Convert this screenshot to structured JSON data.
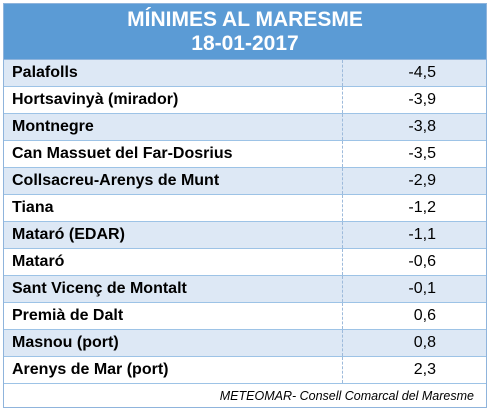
{
  "header": {
    "title": "MÍNIMES AL MARESME",
    "date": "18-01-2017"
  },
  "rows": [
    {
      "name": "Palafolls",
      "value": "-4,5"
    },
    {
      "name": "Hortsavinyà (mirador)",
      "value": "-3,9"
    },
    {
      "name": "Montnegre",
      "value": "-3,8"
    },
    {
      "name": "Can Massuet del Far-Dosrius",
      "value": "-3,5"
    },
    {
      "name": "Collsacreu-Arenys de Munt",
      "value": "-2,9"
    },
    {
      "name": "Tiana",
      "value": "-1,2"
    },
    {
      "name": "Mataró (EDAR)",
      "value": "-1,1"
    },
    {
      "name": "Mataró",
      "value": "-0,6"
    },
    {
      "name": "Sant Vicenç de Montalt",
      "value": "-0,1"
    },
    {
      "name": "Premià de Dalt",
      "value": "0,6"
    },
    {
      "name": "Masnou (port)",
      "value": "0,8"
    },
    {
      "name": "Arenys de Mar (port)",
      "value": "2,3"
    }
  ],
  "footer": {
    "credit": "METEOMAR- Consell Comarcal del Maresme"
  },
  "colors": {
    "header_bg": "#5b9bd5",
    "row_shaded": "#dde8f5",
    "row_plain": "#ffffff"
  }
}
